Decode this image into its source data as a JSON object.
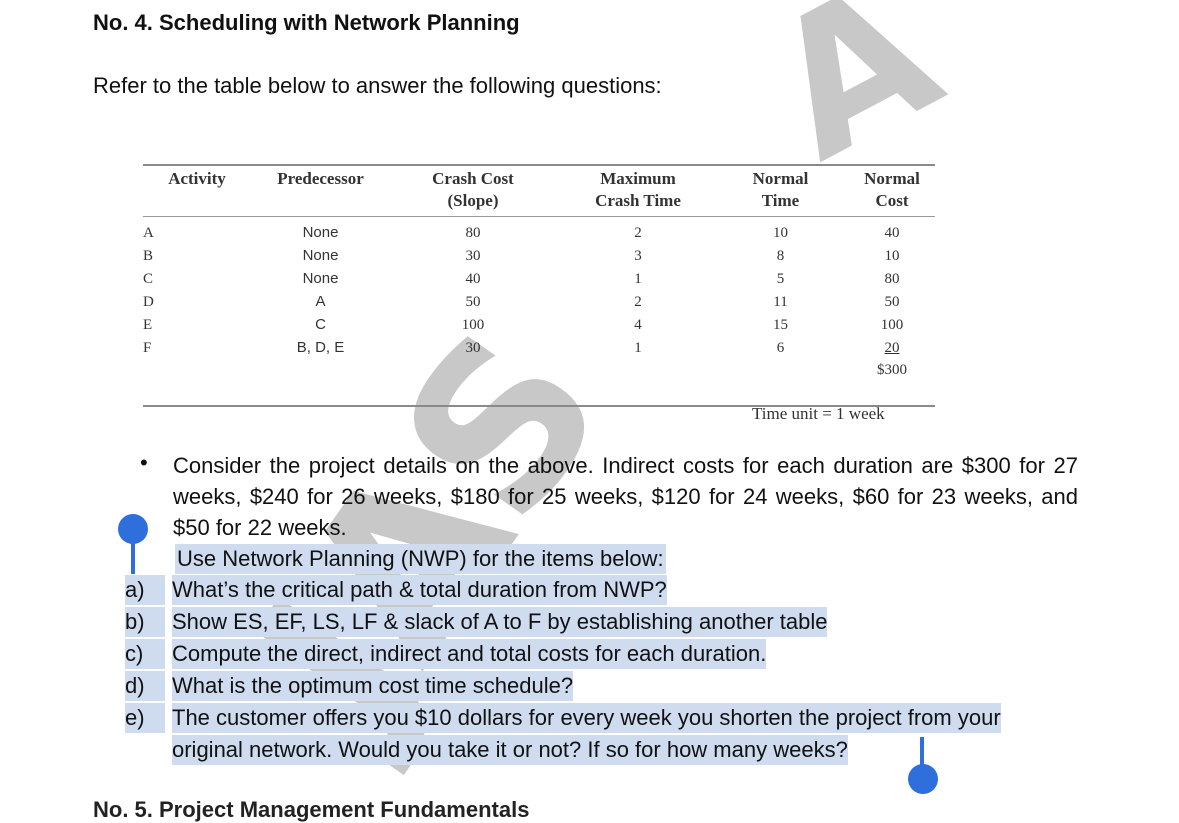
{
  "heading": "No. 4. Scheduling with Network Planning",
  "intro": "Refer to the table below to answer the following questions:",
  "table": {
    "headers": {
      "activity": "Activity",
      "predecessor": "Predecessor",
      "crash_cost_1": "Crash Cost",
      "crash_cost_2": "(Slope)",
      "max_crash_1": "Maximum",
      "max_crash_2": "Crash Time",
      "normal_time_1": "Normal",
      "normal_time_2": "Time",
      "normal_cost_1": "Normal",
      "normal_cost_2": "Cost"
    },
    "rows": [
      {
        "activity": "A",
        "predecessor": "None",
        "crash_cost": "80",
        "max_crash": "2",
        "normal_time": "10",
        "normal_cost": "40"
      },
      {
        "activity": "B",
        "predecessor": "None",
        "crash_cost": "30",
        "max_crash": "3",
        "normal_time": "8",
        "normal_cost": "10"
      },
      {
        "activity": "C",
        "predecessor": "None",
        "crash_cost": "40",
        "max_crash": "1",
        "normal_time": "5",
        "normal_cost": "80"
      },
      {
        "activity": "D",
        "predecessor": "A",
        "crash_cost": "50",
        "max_crash": "2",
        "normal_time": "11",
        "normal_cost": "50"
      },
      {
        "activity": "E",
        "predecessor": "C",
        "crash_cost": "100",
        "max_crash": "4",
        "normal_time": "15",
        "normal_cost": "100"
      },
      {
        "activity": "F",
        "predecessor": "B, D, E",
        "crash_cost": "30",
        "max_crash": "1",
        "normal_time": "6",
        "normal_cost": "20"
      }
    ],
    "total_cost": "$300",
    "time_unit": "Time unit = 1 week"
  },
  "bullet_char": "•",
  "paragraph": "Consider the project details on the above.  Indirect costs for each duration are $300 for 27 weeks, $240 for 26 weeks, $180 for 25 weeks, $120 for 24 weeks, $60 for 23 weeks, and $50 for 22 weeks.",
  "nwp_line": "Use Network Planning (NWP) for the items below:",
  "questions": [
    {
      "label": "a)",
      "text": "What’s the critical path & total duration from NWP?"
    },
    {
      "label": "b)",
      "text": "Show ES, EF, LS, LF & slack of A to F by establishing another table"
    },
    {
      "label": "c)",
      "text": "Compute the direct, indirect and total costs for each duration."
    },
    {
      "label": "d)",
      "text": "What is the optimum cost time schedule?"
    },
    {
      "label": "e)",
      "text": "The customer offers you $10 dollars for every week you shorten the project from your"
    }
  ],
  "question_e_cont": "original network.  Would you take it or not?  If so for how many weeks?",
  "watermark_top": "A",
  "watermark_mid": "JAS",
  "footer_partial": "No. 5. Project Management Fundamentals",
  "colors": {
    "selection": "#cfdcef",
    "handle": "#2f6fdc",
    "watermark": "#c8c8c8"
  }
}
